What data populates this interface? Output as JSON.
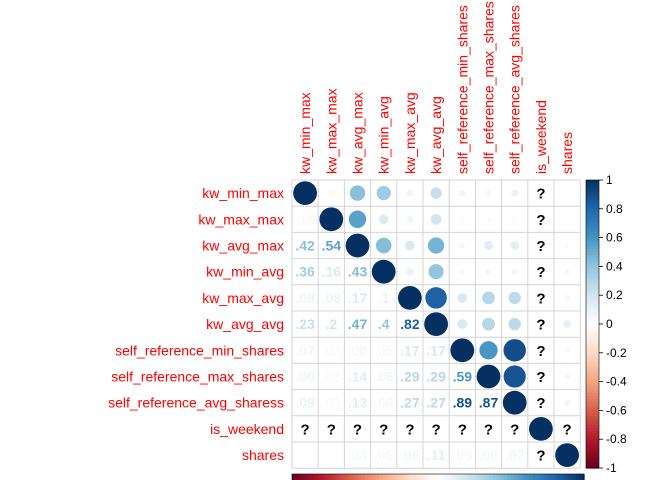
{
  "chart_data": {
    "type": "heatmap",
    "variables": [
      "kw_min_max",
      "kw_max_max",
      "kw_avg_max",
      "kw_min_avg",
      "kw_max_avg",
      "kw_avg_avg",
      "self_reference_min_shares",
      "self_reference_max_shares",
      "self_reference_avg_sharess",
      "is_weekend",
      "shares"
    ],
    "column_labels": [
      "kw_min_max",
      "kw_max_max",
      "kw_avg_max",
      "kw_min_avg",
      "kw_max_avg",
      "kw_avg_avg",
      "self_reference_min_shares",
      "self_reference_max_shares",
      "self_reference_avg_shares",
      "is_weekend",
      "shares"
    ],
    "row_labels": [
      "kw_min_max",
      "kw_max_max",
      "kw_avg_max",
      "kw_min_avg",
      "kw_max_avg",
      "kw_avg_avg",
      "self_reference_min_shares",
      "self_reference_max_shares",
      "self_reference_avg_sharess",
      "is_weekend",
      "shares"
    ],
    "missing_symbol": "?",
    "missing_index": 9,
    "matrix": [
      [
        1,
        -0.05,
        0.42,
        0.36,
        0.08,
        0.23,
        0.07,
        0.06,
        0.09,
        null,
        0.0
      ],
      [
        -0.05,
        1,
        0.54,
        0.16,
        0.08,
        0.2,
        0.03,
        0.03,
        0.03,
        null,
        0.01
      ],
      [
        0.42,
        0.54,
        1,
        0.43,
        0.17,
        0.47,
        0.06,
        0.14,
        0.13,
        null,
        0.04
      ],
      [
        0.36,
        0.16,
        0.43,
        1,
        0.1,
        0.4,
        0.05,
        0.06,
        0.06,
        null,
        0.05
      ],
      [
        0.08,
        0.08,
        0.17,
        0.1,
        1,
        0.82,
        0.17,
        0.29,
        0.27,
        null,
        0.06
      ],
      [
        0.23,
        0.2,
        0.47,
        0.4,
        0.82,
        1,
        0.17,
        0.29,
        0.27,
        null,
        0.11
      ],
      [
        0.07,
        0.03,
        0.06,
        0.05,
        0.17,
        0.17,
        1,
        0.59,
        0.89,
        null,
        0.05
      ],
      [
        0.06,
        0.03,
        0.14,
        0.06,
        0.29,
        0.29,
        0.59,
        1,
        0.87,
        null,
        0.06
      ],
      [
        0.09,
        0.03,
        0.13,
        0.06,
        0.27,
        0.27,
        0.89,
        0.87,
        1,
        null,
        0.07
      ],
      [
        null,
        null,
        null,
        null,
        null,
        null,
        null,
        null,
        null,
        1,
        null
      ],
      [
        0.0,
        0.01,
        0.04,
        0.05,
        0.06,
        0.11,
        0.05,
        0.06,
        0.07,
        null,
        1
      ]
    ],
    "lower_triangle": "numbers",
    "upper_triangle": "circles",
    "color_scale": {
      "range": [
        -1,
        1
      ],
      "ticks": [
        "1",
        "0.8",
        "0.6",
        "0.4",
        "0.2",
        "0",
        "-0.2",
        "-0.4",
        "-0.6",
        "-0.8",
        "-1"
      ],
      "low_color": "#67001f",
      "mid_color": "#ffffff",
      "high_color": "#053061"
    },
    "label_color": "#ff0000",
    "grid": true,
    "legend": "right"
  }
}
